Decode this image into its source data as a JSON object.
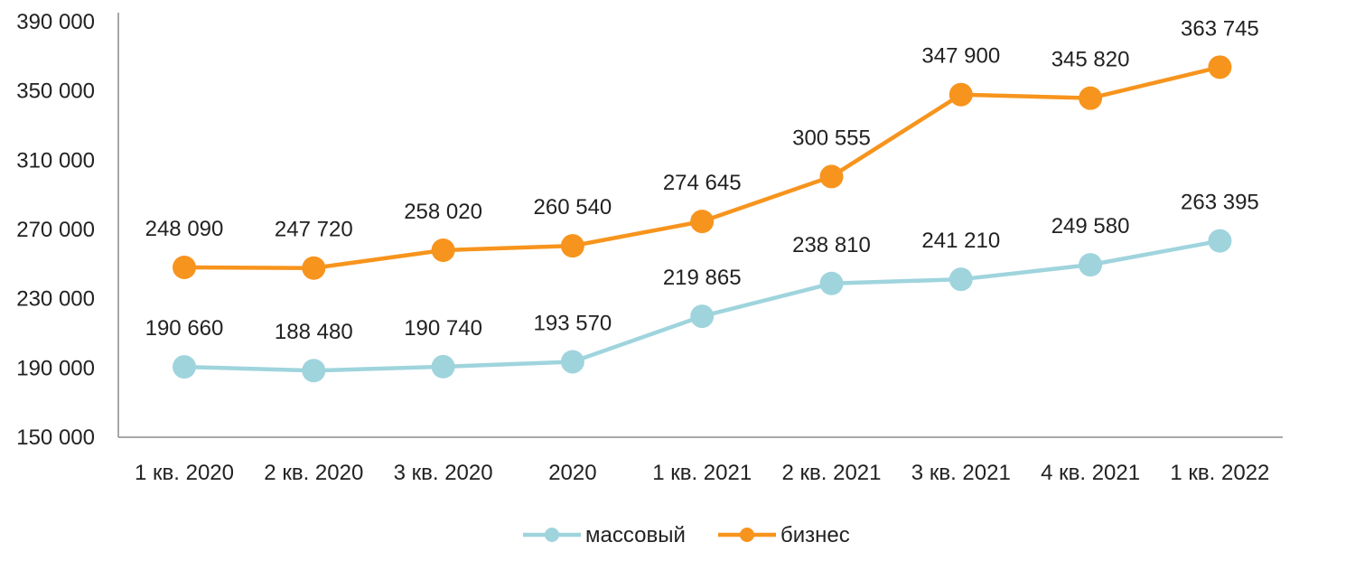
{
  "chart_data": {
    "type": "line",
    "categories": [
      "1 кв. 2020",
      "2 кв. 2020",
      "3 кв. 2020",
      "2020",
      "1 кв. 2021",
      "2 кв. 2021",
      "3 кв. 2021",
      "4 кв. 2021",
      "1 кв. 2022"
    ],
    "series": [
      {
        "name": "массовый",
        "color": "#9fd4dd",
        "values": [
          190660,
          188480,
          190740,
          193570,
          219865,
          238810,
          241210,
          249580,
          263395
        ],
        "labels": [
          "190 660",
          "188 480",
          "190 740",
          "193 570",
          "219 865",
          "238 810",
          "241 210",
          "249 580",
          "263 395"
        ]
      },
      {
        "name": "бизнес",
        "color": "#f7941d",
        "values": [
          248090,
          247720,
          258020,
          260540,
          274645,
          300555,
          347900,
          345820,
          363745
        ],
        "labels": [
          "248 090",
          "247 720",
          "258 020",
          "260 540",
          "274 645",
          "300 555",
          "347 900",
          "345 820",
          "363 745"
        ]
      }
    ],
    "ylim": [
      150000,
      390000
    ],
    "yticks": [
      150000,
      190000,
      230000,
      270000,
      310000,
      350000,
      390000
    ],
    "ytick_labels": [
      "150 000",
      "190 000",
      "230 000",
      "270 000",
      "310 000",
      "350 000",
      "390 000"
    ],
    "grid": false,
    "legend": "bottom-center",
    "title": "",
    "xlabel": "",
    "ylabel": ""
  }
}
